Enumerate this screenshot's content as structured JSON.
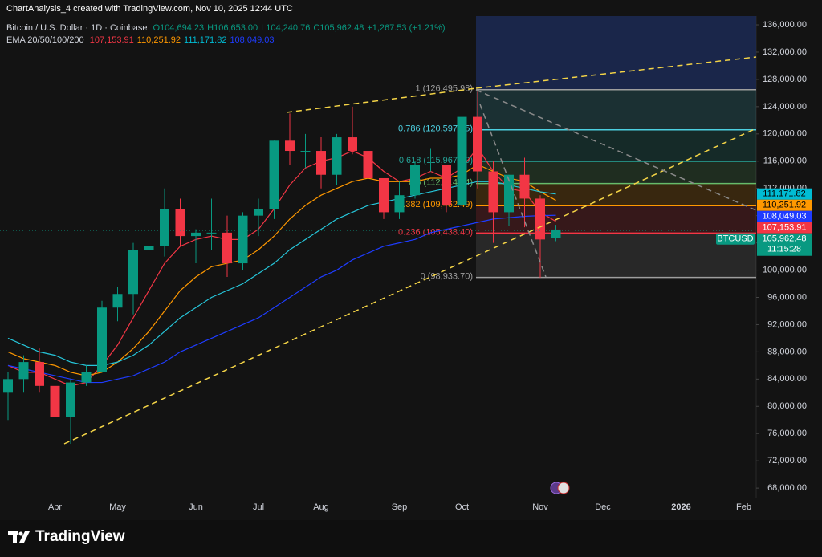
{
  "header": {
    "attribution": "ChartAnalysis_4 created with TradingView.com, Nov 10, 2025 12:44 UTC",
    "symbol": "Bitcoin / U.S. Dollar · 1D · Coinbase",
    "ohlc": [
      "O104,694.23",
      "H106,653.00",
      "L104,240.76",
      "C105,962.48",
      "+1,267.53 (+1.21%)"
    ],
    "ema_title": "EMA 20/50/100/200"
  },
  "chart_data": {
    "type": "candlestick",
    "categories": [
      null,
      null,
      null,
      "Apr",
      null,
      null,
      null,
      "May",
      null,
      null,
      null,
      null,
      "Jun",
      null,
      null,
      null,
      "Jul",
      null,
      null,
      null,
      "Aug",
      null,
      null,
      null,
      null,
      "Sep",
      null,
      null,
      null,
      "Oct",
      null,
      null,
      null,
      null,
      "Nov",
      null,
      null,
      null,
      "Dec",
      null,
      null,
      null,
      null,
      "2026",
      null,
      null,
      null,
      "Feb"
    ],
    "open": [
      82000,
      84000,
      86500,
      83000,
      78500,
      83500,
      85000,
      94500,
      96500,
      103000,
      103500,
      109000,
      105000,
      105500,
      105500,
      101000,
      108000,
      109000,
      119000,
      117500,
      117500,
      114000,
      119500,
      117500,
      113500,
      108500,
      111000,
      115500,
      115500,
      109500,
      122500,
      114500,
      108500,
      114000,
      110500,
      104694.23,
      null,
      null,
      null,
      null,
      null,
      null,
      null,
      null,
      null,
      null,
      null,
      null
    ],
    "high": [
      85000,
      87500,
      88500,
      86000,
      84000,
      86000,
      95500,
      97500,
      104000,
      105500,
      112000,
      110500,
      106000,
      110500,
      108000,
      108500,
      110500,
      119000,
      123000,
      120000,
      119500,
      120000,
      124000,
      117500,
      113500,
      113000,
      116000,
      117800,
      115500,
      123000,
      126200,
      116000,
      114000,
      116500,
      111000,
      106653,
      null,
      null,
      null,
      null,
      null,
      null,
      null,
      null,
      null,
      null,
      null,
      null
    ],
    "low": [
      78000,
      82000,
      82000,
      76500,
      74500,
      83000,
      85000,
      92500,
      93500,
      101000,
      102000,
      103500,
      101000,
      103000,
      99000,
      100000,
      105000,
      107500,
      115500,
      115000,
      112000,
      112500,
      117000,
      111500,
      107500,
      107500,
      110500,
      114500,
      108500,
      109500,
      112000,
      104000,
      106500,
      106300,
      98900,
      104240.76,
      null,
      null,
      null,
      null,
      null,
      null,
      null,
      null,
      null,
      null,
      null,
      null
    ],
    "close": [
      84000,
      86500,
      83000,
      78500,
      83500,
      85000,
      94500,
      96500,
      103000,
      103500,
      109000,
      105000,
      105500,
      105500,
      101000,
      108000,
      109000,
      119000,
      117500,
      117500,
      114000,
      119500,
      117500,
      113500,
      108500,
      111000,
      115500,
      115500,
      109500,
      122500,
      114500,
      108500,
      114000,
      110500,
      104500,
      105962.48,
      null,
      null,
      null,
      null,
      null,
      null,
      null,
      null,
      null,
      null,
      null,
      null
    ],
    "up_color": "#089981",
    "down_color": "#f23645",
    "series": [
      {
        "color": "#f23645",
        "values": [
          86000,
          85000,
          85000,
          84000,
          83000,
          83500,
          86000,
          89000,
          93000,
          97000,
          101000,
          103500,
          104500,
          105000,
          104500,
          104500,
          106000,
          109000,
          112500,
          115000,
          116000,
          116500,
          117500,
          116500,
          114500,
          113000,
          113500,
          114500,
          113500,
          115000,
          118000,
          114500,
          112000,
          111500,
          108500,
          107153.91,
          null,
          null,
          null,
          null,
          null,
          null,
          null,
          null,
          null,
          null,
          null,
          null
        ]
      },
      {
        "color": "#ff9800",
        "values": [
          88000,
          87000,
          86500,
          86000,
          85000,
          84500,
          85000,
          86500,
          88500,
          91000,
          94000,
          97000,
          99000,
          100500,
          101000,
          101500,
          103000,
          105000,
          107500,
          109500,
          111000,
          112000,
          113000,
          113500,
          113000,
          113000,
          113000,
          113500,
          113500,
          114000,
          115500,
          114500,
          113500,
          113000,
          111500,
          110251.92,
          null,
          null,
          null,
          null,
          null,
          null,
          null,
          null,
          null,
          null,
          null,
          null
        ]
      },
      {
        "color": "#26c6da",
        "values": [
          90000,
          89000,
          88000,
          87500,
          86500,
          86000,
          86000,
          86500,
          87500,
          89000,
          91000,
          93000,
          94500,
          96000,
          97000,
          98000,
          99500,
          101000,
          103000,
          104500,
          106000,
          107500,
          108500,
          109500,
          110000,
          110500,
          111000,
          111500,
          112000,
          112500,
          113000,
          113000,
          112500,
          112000,
          111500,
          111171.82,
          null,
          null,
          null,
          null,
          null,
          null,
          null,
          null,
          null,
          null,
          null,
          null
        ]
      },
      {
        "color": "#1e3cff",
        "values": [
          86000,
          85500,
          85000,
          84500,
          84000,
          83500,
          83500,
          84000,
          84500,
          85500,
          86500,
          88000,
          89000,
          90000,
          91000,
          92000,
          93000,
          94500,
          96000,
          97500,
          99000,
          100000,
          101500,
          102500,
          103500,
          104000,
          104500,
          105500,
          106000,
          106500,
          107000,
          107500,
          107700,
          107900,
          108000,
          108049.03,
          null,
          null,
          null,
          null,
          null,
          null,
          null,
          null,
          null,
          null,
          null,
          null
        ]
      }
    ],
    "ylim": [
      66600,
      137300
    ],
    "yticks": [
      {
        "value": 136000,
        "label": "136,000.00"
      },
      {
        "value": 132000,
        "label": "132,000.00"
      },
      {
        "value": 128000,
        "label": "128,000.00"
      },
      {
        "value": 124000,
        "label": "124,000.00"
      },
      {
        "value": 120000,
        "label": "120,000.00"
      },
      {
        "value": 116000,
        "label": "116,000.00"
      },
      {
        "value": 112000,
        "label": "112,000.00"
      },
      {
        "value": 108000,
        "label": "108,000.00"
      },
      {
        "value": 104000,
        "label": "104,000.00"
      },
      {
        "value": 100000,
        "label": "100,000.00"
      },
      {
        "value": 96000,
        "label": "96,000.00"
      },
      {
        "value": 92000,
        "label": "92,000.00"
      },
      {
        "value": 88000,
        "label": "88,000.00"
      },
      {
        "value": 84000,
        "label": "84,000.00"
      },
      {
        "value": 80000,
        "label": "80,000.00"
      },
      {
        "value": 76000,
        "label": "76,000.00"
      },
      {
        "value": 72000,
        "label": "72,000.00"
      },
      {
        "value": 68000,
        "label": "68,000.00"
      }
    ],
    "grid": false,
    "fib_levels": [
      {
        "value": 126495.98,
        "label": "1 (126,495.98)",
        "color": "#9e9e9e"
      },
      {
        "value": 120597.65,
        "label": "0.786 (120,597.65)",
        "color": "#4dd0e1"
      },
      {
        "value": 115967.19,
        "label": "0.618 (115,967.19)",
        "color": "#26a69a"
      },
      {
        "value": 112714.84,
        "label": "0.5 (112,714.84)",
        "color": "#66bb6a"
      },
      {
        "value": 109462.49,
        "label": "0.382 (109,462.49)",
        "color": "#ff9800"
      },
      {
        "value": 105438.4,
        "label": "0.236 (105,438.40)",
        "color": "#f23645"
      },
      {
        "value": 98933.7,
        "label": "0 (98,933.70)",
        "color": "#9e9e9e"
      }
    ],
    "price_markers": [
      {
        "value": 111171.82,
        "label": "111,171.82",
        "color": "#00bcd4",
        "text_color": "#000000"
      },
      {
        "value": 110251.92,
        "label": "110,251.92",
        "color": "#ff9800",
        "text_color": "#000000"
      },
      {
        "value": 108049.03,
        "label": "108,049.03",
        "color": "#1e3cff",
        "text_color": "#ffffff"
      },
      {
        "value": 107153.91,
        "label": "107,153.91",
        "color": "#f23645",
        "text_color": "#ffffff"
      },
      {
        "value": 105962.48,
        "label": "105,962.48",
        "color": "#089981",
        "text_color": "#ffffff"
      }
    ],
    "symbol_tag": "BTCUSD",
    "countdown": "11:15:28"
  },
  "footer": {
    "logo": "TradingView"
  }
}
